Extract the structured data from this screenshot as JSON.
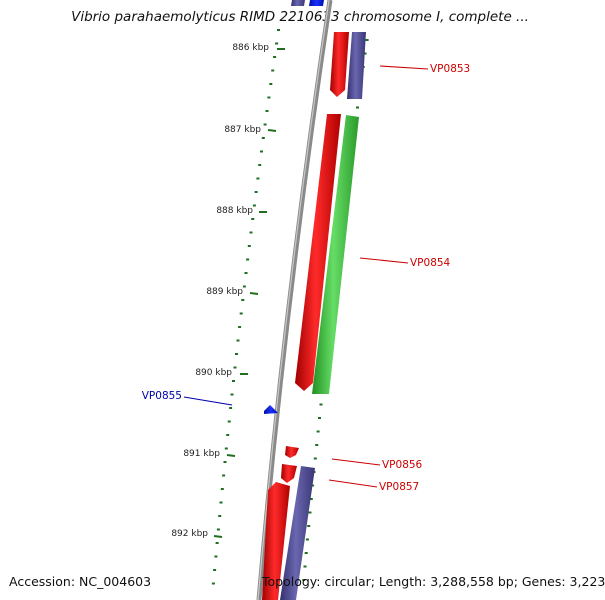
{
  "title": "Vibrio parahaemolyticus RIMD 2210633 chromosome I, complete ...",
  "accession": "Accession: NC_004603",
  "topology": "Topology: circular; Length: 3,288,558 bp; Genes: 3,223",
  "ticks": [
    "886 kbp",
    "887 kbp",
    "888 kbp",
    "889 kbp",
    "890 kbp",
    "891 kbp",
    "892 kbp"
  ],
  "genes": [
    {
      "label": "VP0853",
      "color": "#cc0000"
    },
    {
      "label": "VP0854",
      "color": "#cc0000"
    },
    {
      "label": "VP0855",
      "color": "#0000aa"
    },
    {
      "label": "VP0856",
      "color": "#cc0000"
    },
    {
      "label": "VP0857",
      "color": "#cc0000"
    }
  ],
  "colors": {
    "backbone": "#8a8a8a",
    "forward_red": "#e00000",
    "reverse_purple": "#4a4690",
    "reverse_green": "#3cb83c",
    "blue_feature": "#0a1ee8",
    "ticks": "#1f6f1f"
  }
}
